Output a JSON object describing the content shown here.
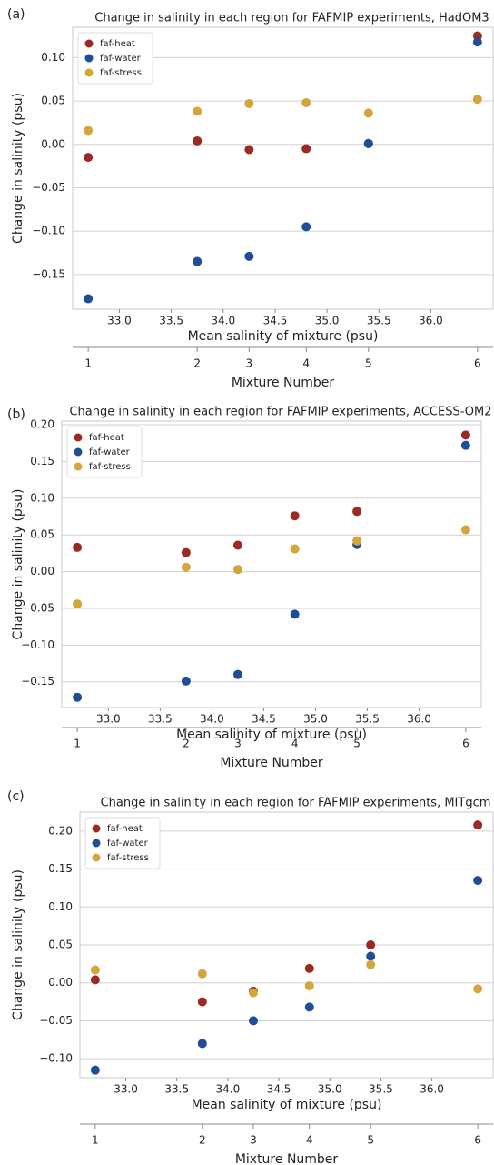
{
  "chart_data": [
    {
      "type": "scatter",
      "panel_label": "(a)",
      "title": "Change in salinity in each region for FAFMIP experiments, HadOM3",
      "x": [
        32.7,
        33.75,
        34.25,
        34.8,
        35.4,
        36.45
      ],
      "series": [
        {
          "name": "faf-heat",
          "color": "#9b2a22",
          "values": [
            -0.015,
            0.004,
            -0.006,
            -0.005,
            0.001,
            0.125
          ]
        },
        {
          "name": "faf-water",
          "color": "#1f4e96",
          "values": [
            -0.178,
            -0.135,
            -0.129,
            -0.095,
            0.001,
            0.118
          ]
        },
        {
          "name": "faf-stress",
          "color": "#d4a63a",
          "values": [
            0.016,
            0.038,
            0.047,
            0.048,
            0.036,
            0.052
          ]
        }
      ],
      "xlim": [
        32.55,
        36.6
      ],
      "xticks": [
        {
          "value": 33,
          "label": "33.0"
        },
        {
          "value": 33.5,
          "label": "33.5"
        },
        {
          "value": 34,
          "label": "34.0"
        },
        {
          "value": 34.5,
          "label": "34.5"
        },
        {
          "value": 35,
          "label": "35.0"
        },
        {
          "value": 35.5,
          "label": "35.5"
        },
        {
          "value": 36,
          "label": "36.0"
        }
      ],
      "ylim": [
        -0.19,
        0.135
      ],
      "yticks": [
        {
          "value": -0.15,
          "label": "−0.15"
        },
        {
          "value": -0.1,
          "label": "−0.10"
        },
        {
          "value": -0.05,
          "label": "−0.05"
        },
        {
          "value": 0,
          "label": "0.00"
        },
        {
          "value": 0.05,
          "label": "0.05"
        },
        {
          "value": 0.1,
          "label": "0.10"
        }
      ],
      "xlabel": "Mean salinity of mixture (psu)",
      "ylabel": "Change in salinity (psu)",
      "x2label": "Mixture Number",
      "x2ticks": [
        {
          "value": 32.7,
          "label": "1"
        },
        {
          "value": 33.75,
          "label": "2"
        },
        {
          "value": 34.25,
          "label": "3"
        },
        {
          "value": 34.8,
          "label": "4"
        },
        {
          "value": 35.4,
          "label": "5"
        },
        {
          "value": 36.45,
          "label": "6"
        }
      ],
      "legend": "upper left",
      "grid": true
    },
    {
      "type": "scatter",
      "panel_label": "(b)",
      "title": "Change in salinity in each region for FAFMIP experiments, ACCESS-OM2",
      "x": [
        32.7,
        33.75,
        34.25,
        34.8,
        35.4,
        36.45
      ],
      "series": [
        {
          "name": "faf-heat",
          "color": "#9b2a22",
          "values": [
            0.033,
            0.026,
            0.036,
            0.076,
            0.082,
            0.186
          ]
        },
        {
          "name": "faf-water",
          "color": "#1f4e96",
          "values": [
            -0.171,
            -0.149,
            -0.14,
            -0.058,
            0.037,
            0.172
          ]
        },
        {
          "name": "faf-stress",
          "color": "#d4a63a",
          "values": [
            -0.044,
            0.006,
            0.003,
            0.031,
            0.042,
            0.057
          ]
        }
      ],
      "xlim": [
        32.55,
        36.6
      ],
      "xticks": [
        {
          "value": 33,
          "label": "33.0"
        },
        {
          "value": 33.5,
          "label": "33.5"
        },
        {
          "value": 34,
          "label": "34.0"
        },
        {
          "value": 34.5,
          "label": "34.5"
        },
        {
          "value": 35,
          "label": "35.0"
        },
        {
          "value": 35.5,
          "label": "35.5"
        },
        {
          "value": 36,
          "label": "36.0"
        }
      ],
      "ylim": [
        -0.185,
        0.205
      ],
      "yticks": [
        {
          "value": -0.15,
          "label": "−0.15"
        },
        {
          "value": -0.1,
          "label": "−0.10"
        },
        {
          "value": -0.05,
          "label": "−0.05"
        },
        {
          "value": 0,
          "label": "0.00"
        },
        {
          "value": 0.05,
          "label": "0.05"
        },
        {
          "value": 0.1,
          "label": "0.10"
        },
        {
          "value": 0.15,
          "label": "0.15"
        },
        {
          "value": 0.2,
          "label": "0.20"
        }
      ],
      "xlabel": "Mean salinity of mixture (psu)",
      "ylabel": "Change in salinity (psu)",
      "x2label": "Mixture Number",
      "x2ticks": [
        {
          "value": 32.7,
          "label": "1"
        },
        {
          "value": 33.75,
          "label": "2"
        },
        {
          "value": 34.25,
          "label": "3"
        },
        {
          "value": 34.8,
          "label": "4"
        },
        {
          "value": 35.4,
          "label": "5"
        },
        {
          "value": 36.45,
          "label": "6"
        }
      ],
      "legend": "upper left",
      "grid": true
    },
    {
      "type": "scatter",
      "panel_label": "(c)",
      "title": "Change in salinity in each region for FAFMIP experiments, MITgcm",
      "x": [
        32.7,
        33.75,
        34.25,
        34.8,
        35.4,
        36.45
      ],
      "series": [
        {
          "name": "faf-heat",
          "color": "#9b2a22",
          "values": [
            0.004,
            -0.025,
            -0.011,
            0.019,
            0.05,
            0.208
          ]
        },
        {
          "name": "faf-water",
          "color": "#1f4e96",
          "values": [
            -0.115,
            -0.08,
            -0.05,
            -0.032,
            0.035,
            0.135
          ]
        },
        {
          "name": "faf-stress",
          "color": "#d4a63a",
          "values": [
            0.017,
            0.012,
            -0.013,
            -0.004,
            0.024,
            -0.008
          ]
        }
      ],
      "xlim": [
        32.55,
        36.6
      ],
      "xticks": [
        {
          "value": 33,
          "label": "33.0"
        },
        {
          "value": 33.5,
          "label": "33.5"
        },
        {
          "value": 34,
          "label": "34.0"
        },
        {
          "value": 34.5,
          "label": "34.5"
        },
        {
          "value": 35,
          "label": "35.0"
        },
        {
          "value": 35.5,
          "label": "35.5"
        },
        {
          "value": 36,
          "label": "36.0"
        }
      ],
      "ylim": [
        -0.125,
        0.225
      ],
      "yticks": [
        {
          "value": -0.1,
          "label": "−0.10"
        },
        {
          "value": -0.05,
          "label": "−0.05"
        },
        {
          "value": 0,
          "label": "0.00"
        },
        {
          "value": 0.05,
          "label": "0.05"
        },
        {
          "value": 0.1,
          "label": "0.10"
        },
        {
          "value": 0.15,
          "label": "0.15"
        },
        {
          "value": 0.2,
          "label": "0.20"
        }
      ],
      "xlabel": "Mean salinity of mixture (psu)",
      "ylabel": "Change in salinity (psu)",
      "x2label": "Mixture Number",
      "x2ticks": [
        {
          "value": 32.7,
          "label": "1"
        },
        {
          "value": 33.75,
          "label": "2"
        },
        {
          "value": 34.25,
          "label": "3"
        },
        {
          "value": 34.8,
          "label": "4"
        },
        {
          "value": 35.4,
          "label": "5"
        },
        {
          "value": 36.45,
          "label": "6"
        }
      ],
      "legend": "upper left",
      "grid": true
    }
  ]
}
